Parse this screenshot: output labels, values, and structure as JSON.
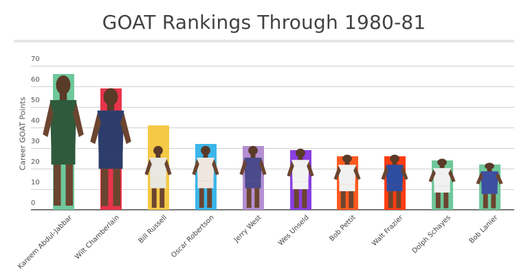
{
  "chart_data": {
    "type": "bar",
    "title": "GOAT Rankings Through 1980-81",
    "xlabel": "",
    "ylabel": "Career GOAT Points",
    "ylim": [
      0,
      70
    ],
    "yticks": [
      0,
      10,
      20,
      30,
      40,
      50,
      60,
      70
    ],
    "grid": true,
    "legend": "none",
    "categories": [
      "Kareem Abdul-Jabbar",
      "Wilt Chamberlain",
      "Bill Russell",
      "Oscar Robertson",
      "Jerry West",
      "Wes Unseld",
      "Bob Pettit",
      "Walt Frazier",
      "Dolph Schayes",
      "Bob Lanier"
    ],
    "values": [
      66,
      59,
      41,
      32,
      31,
      29,
      26,
      26,
      24,
      22
    ],
    "bar_colors": [
      "#6fc89b",
      "#e8344a",
      "#f5c946",
      "#3bb6ea",
      "#b48fd2",
      "#8a3fe0",
      "#ff5a1f",
      "#ff3d12",
      "#6fc89b",
      "#6fc89b"
    ],
    "annotations": "Each bar overlaid with a photo of the player"
  },
  "ytick_labels": [
    "0",
    "10",
    "20",
    "30",
    "40",
    "50",
    "60",
    "70"
  ]
}
